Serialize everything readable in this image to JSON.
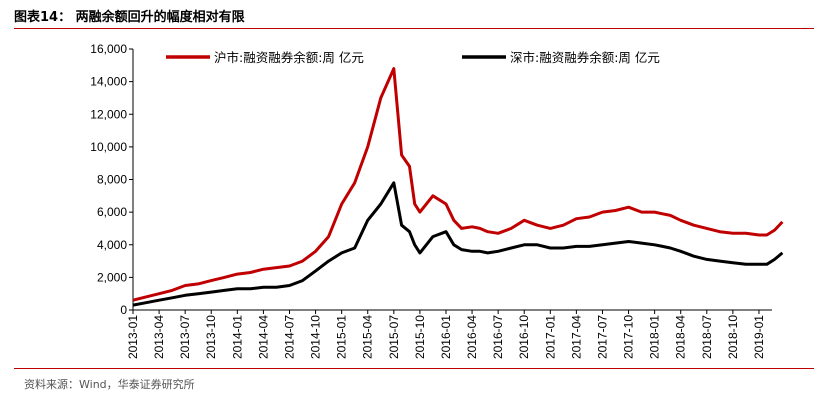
{
  "title": "图表14：  两融余额回升的幅度相对有限",
  "source": "资料来源：Wind，华泰证券研究所",
  "chart_data": {
    "type": "line",
    "ylim": [
      0,
      16000
    ],
    "yticks": [
      "0",
      "2,000",
      "4,000",
      "6,000",
      "8,000",
      "10,000",
      "12,000",
      "14,000",
      "16,000"
    ],
    "xticks": [
      "2013-01",
      "2013-04",
      "2013-07",
      "2013-10",
      "2014-01",
      "2014-04",
      "2014-07",
      "2014-10",
      "2015-01",
      "2015-04",
      "2015-07",
      "2015-10",
      "2016-01",
      "2016-04",
      "2016-07",
      "2016-10",
      "2017-01",
      "2017-04",
      "2017-07",
      "2017-10",
      "2018-01",
      "2018-04",
      "2018-07",
      "2018-10",
      "2019-01"
    ],
    "legend_position": "top",
    "series": [
      {
        "name": "沪市:融资融券余额:周 亿元",
        "color": "#C00000",
        "x": [
          0,
          0.5,
          1,
          1.5,
          2,
          2.5,
          3,
          3.5,
          4,
          4.5,
          5,
          5.5,
          6,
          6.5,
          7,
          7.5,
          8,
          8.5,
          9,
          9.5,
          10,
          10.3,
          10.6,
          10.8,
          11,
          11.5,
          12,
          12.3,
          12.6,
          13,
          13.3,
          13.6,
          14,
          14.5,
          15,
          15.5,
          16,
          16.5,
          17,
          17.5,
          18,
          18.5,
          19,
          19.5,
          20,
          20.3,
          20.6,
          21,
          21.5,
          22,
          22.5,
          23,
          23.5,
          24,
          24.3,
          24.6,
          24.9
        ],
        "values": [
          600,
          800,
          1000,
          1200,
          1500,
          1600,
          1800,
          2000,
          2200,
          2300,
          2500,
          2600,
          2700,
          3000,
          3600,
          4500,
          6500,
          7800,
          10000,
          13000,
          14800,
          9500,
          8800,
          6500,
          6000,
          7000,
          6500,
          5500,
          5000,
          5100,
          5000,
          4800,
          4700,
          5000,
          5500,
          5200,
          5000,
          5200,
          5600,
          5700,
          6000,
          6100,
          6300,
          6000,
          6000,
          5900,
          5800,
          5500,
          5200,
          5000,
          4800,
          4700,
          4700,
          4600,
          4600,
          4900,
          5400
        ]
      },
      {
        "name": "深市:融资融券余额:周 亿元",
        "color": "#000000",
        "x": [
          0,
          0.5,
          1,
          1.5,
          2,
          2.5,
          3,
          3.5,
          4,
          4.5,
          5,
          5.5,
          6,
          6.5,
          7,
          7.5,
          8,
          8.5,
          9,
          9.5,
          10,
          10.3,
          10.6,
          10.8,
          11,
          11.5,
          12,
          12.3,
          12.6,
          13,
          13.3,
          13.6,
          14,
          14.5,
          15,
          15.5,
          16,
          16.5,
          17,
          17.5,
          18,
          18.5,
          19,
          19.5,
          20,
          20.3,
          20.6,
          21,
          21.5,
          22,
          22.5,
          23,
          23.5,
          24,
          24.3,
          24.6,
          24.9
        ],
        "values": [
          300,
          450,
          600,
          750,
          900,
          1000,
          1100,
          1200,
          1300,
          1300,
          1400,
          1400,
          1500,
          1800,
          2400,
          3000,
          3500,
          3800,
          5500,
          6500,
          7800,
          5200,
          4800,
          4000,
          3500,
          4500,
          4800,
          4000,
          3700,
          3600,
          3600,
          3500,
          3600,
          3800,
          4000,
          4000,
          3800,
          3800,
          3900,
          3900,
          4000,
          4100,
          4200,
          4100,
          4000,
          3900,
          3800,
          3600,
          3300,
          3100,
          3000,
          2900,
          2800,
          2800,
          2800,
          3100,
          3500
        ]
      }
    ]
  }
}
